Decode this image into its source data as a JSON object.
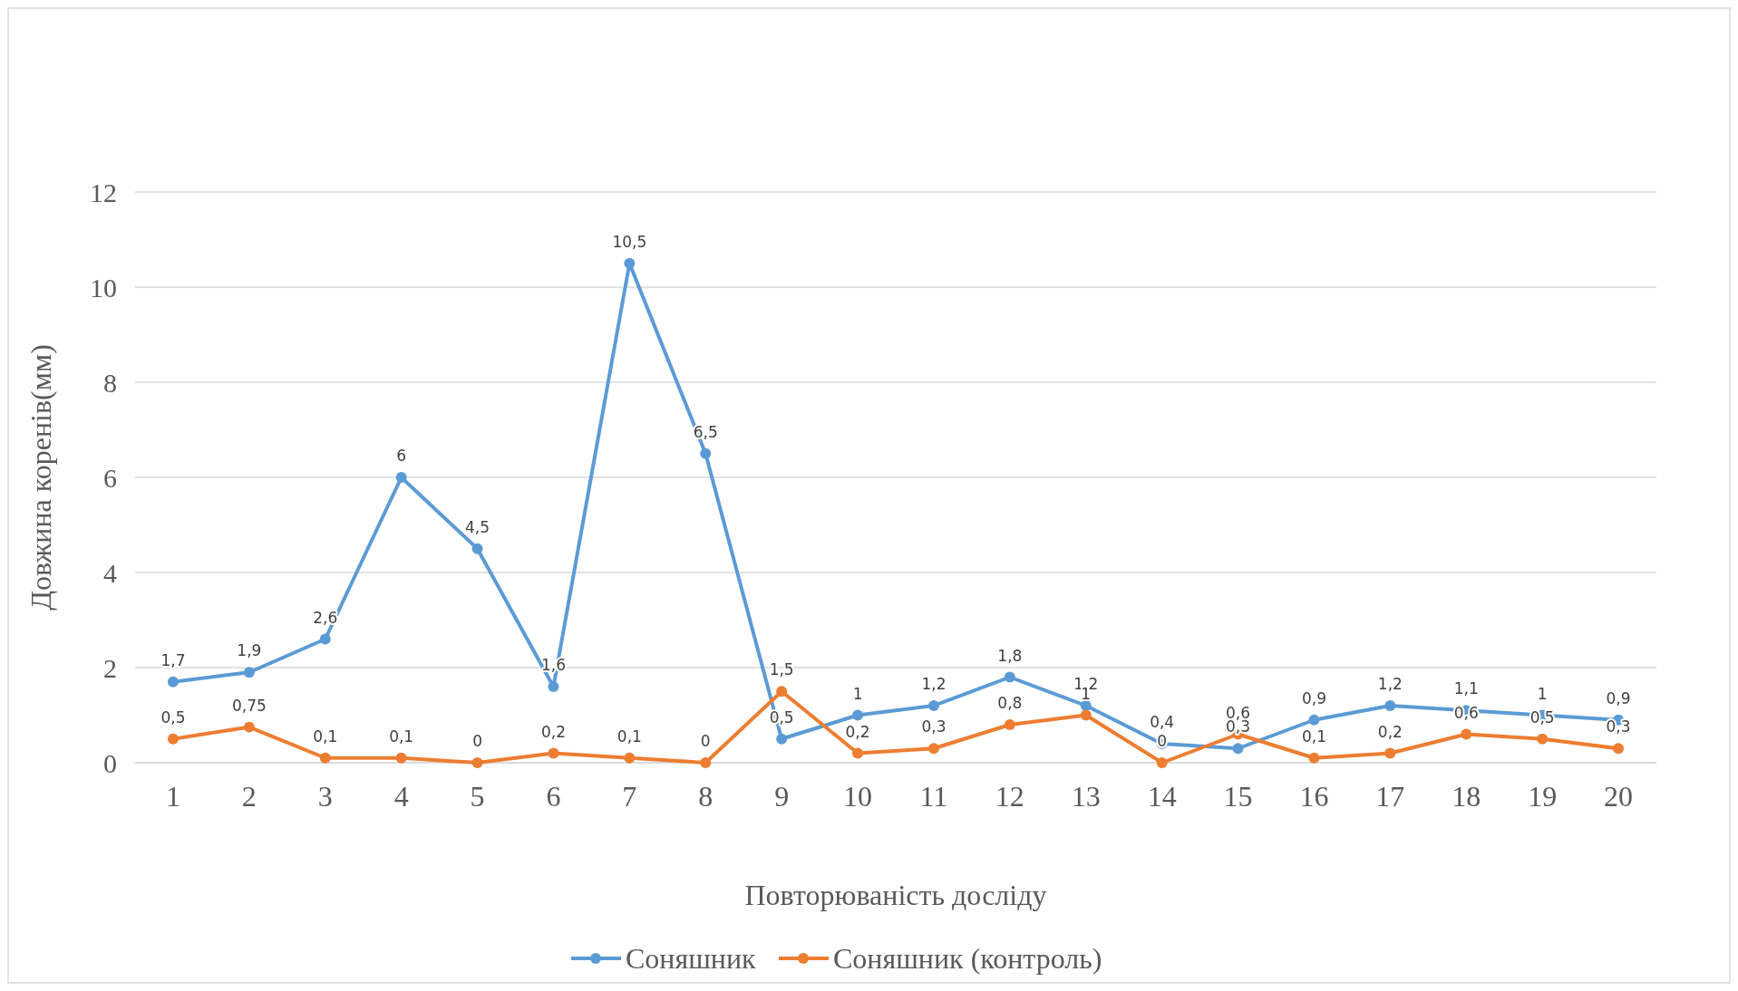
{
  "chart_data": {
    "type": "line",
    "xlabel": "Повторюваність досліду",
    "ylabel": "Довжина коренів(мм)",
    "categories": [
      "1",
      "2",
      "3",
      "4",
      "5",
      "6",
      "7",
      "8",
      "9",
      "10",
      "11",
      "12",
      "13",
      "14",
      "15",
      "16",
      "17",
      "18",
      "19",
      "20"
    ],
    "series": [
      {
        "name": "Соняшник",
        "color": "#5b9bd5",
        "values": [
          1.7,
          1.9,
          2.6,
          6,
          4.5,
          1.6,
          10.5,
          6.5,
          0.5,
          1,
          1.2,
          1.8,
          1.2,
          0.4,
          0.3,
          0.9,
          1.2,
          1.1,
          1,
          0.9
        ],
        "value_labels": [
          "1,7",
          "1,9",
          "2,6",
          "6",
          "4,5",
          "1,6",
          "10,5",
          "6,5",
          "0,5",
          "1",
          "1,2",
          "1,8",
          "1,2",
          "0,4",
          "0,3",
          "0,9",
          "1,2",
          "1,1",
          "1",
          "0,9"
        ]
      },
      {
        "name": "Соняшник (контроль)",
        "color": "#ed7d31",
        "values": [
          0.5,
          0.75,
          0.1,
          0.1,
          0,
          0.2,
          0.1,
          0,
          1.5,
          0.2,
          0.3,
          0.8,
          1,
          0,
          0.6,
          0.1,
          0.2,
          0.6,
          0.5,
          0.3
        ],
        "value_labels": [
          "0,5",
          "0,75",
          "0,1",
          "0,1",
          "0",
          "0,2",
          "0,1",
          "0",
          "1,5",
          "0,2",
          "0,3",
          "0,8",
          "1",
          "0",
          "0,6",
          "0,1",
          "0,2",
          "0,6",
          "0,5",
          "0,3"
        ]
      }
    ],
    "ylim": [
      0,
      12
    ],
    "yticks": [
      0,
      2,
      4,
      6,
      8,
      10,
      12
    ],
    "grid": "y",
    "legend": "bottom",
    "marker": "circle",
    "line_style": "solid"
  }
}
